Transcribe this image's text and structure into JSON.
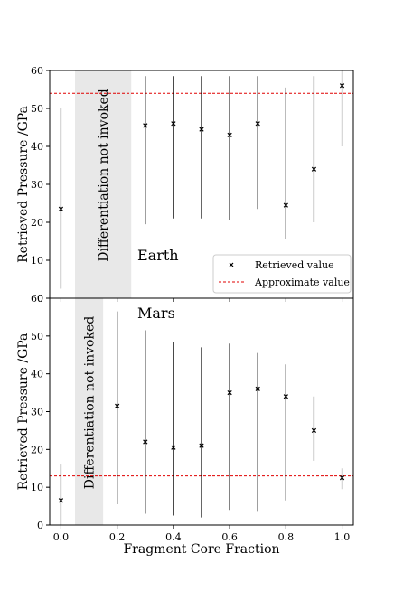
{
  "chart_data": [
    {
      "type": "errorbar",
      "panel_label": "Earth",
      "ylabel": "Retrieved Pressure /GPa",
      "xlabel": "",
      "xlim": [
        -0.04,
        1.04
      ],
      "ylim": [
        0,
        60
      ],
      "yticks": [
        0,
        10,
        20,
        30,
        40,
        50,
        60
      ],
      "ytick_labels": [
        "0",
        "10",
        "20",
        "30",
        "40",
        "50",
        "60"
      ],
      "shaded_region": {
        "x_range": [
          0.05,
          0.25
        ],
        "label": "Differentiation not invoked",
        "color": "#e8e8e8"
      },
      "reference_line": {
        "name": "Approximate value",
        "y": 54,
        "color": "#e00000",
        "style": "dashed"
      },
      "series": [
        {
          "name": "Retrieved value",
          "marker": "x",
          "x": [
            0.0,
            0.3,
            0.4,
            0.5,
            0.6,
            0.7,
            0.8,
            0.9,
            1.0
          ],
          "y": [
            23.5,
            45.5,
            46.0,
            44.5,
            43.0,
            46.0,
            24.5,
            34.0,
            56.0
          ],
          "y_low": [
            2.5,
            19.5,
            21.0,
            21.0,
            20.5,
            23.5,
            15.5,
            20.0,
            40.0
          ],
          "y_high": [
            50.0,
            58.5,
            58.5,
            58.5,
            58.5,
            58.5,
            55.5,
            58.5,
            60.0
          ]
        }
      ],
      "legend": {
        "placement": "lower-right",
        "entries": [
          "Retrieved value",
          "Approximate value"
        ]
      }
    },
    {
      "type": "errorbar",
      "panel_label": "Mars",
      "ylabel": "Retrieved Pressure /GPa",
      "xlabel": "Fragment Core Fraction",
      "xlim": [
        -0.04,
        1.04
      ],
      "ylim": [
        0,
        60
      ],
      "xticks": [
        0.0,
        0.2,
        0.4,
        0.6,
        0.8,
        1.0
      ],
      "xtick_labels": [
        "0.0",
        "0.2",
        "0.4",
        "0.6",
        "0.8",
        "1.0"
      ],
      "yticks": [
        0,
        10,
        20,
        30,
        40,
        50,
        60
      ],
      "ytick_labels": [
        "0",
        "10",
        "20",
        "30",
        "40",
        "50",
        "60"
      ],
      "shaded_region": {
        "x_range": [
          0.05,
          0.15
        ],
        "label": "Differentiation not invoked",
        "color": "#e8e8e8"
      },
      "reference_line": {
        "name": "Approximate value",
        "y": 13,
        "color": "#e00000",
        "style": "dashed"
      },
      "series": [
        {
          "name": "Retrieved value",
          "marker": "x",
          "x": [
            0.0,
            0.2,
            0.3,
            0.4,
            0.5,
            0.6,
            0.7,
            0.8,
            0.9,
            1.0
          ],
          "y": [
            6.5,
            31.5,
            22.0,
            20.5,
            21.0,
            35.0,
            36.0,
            34.0,
            25.0,
            12.5
          ],
          "y_low": [
            0.0,
            5.5,
            3.0,
            2.5,
            2.0,
            4.0,
            3.5,
            6.5,
            17.0,
            9.5
          ],
          "y_high": [
            16.0,
            56.5,
            51.5,
            48.5,
            47.0,
            48.0,
            45.5,
            42.5,
            34.0,
            15.0
          ]
        }
      ]
    }
  ]
}
